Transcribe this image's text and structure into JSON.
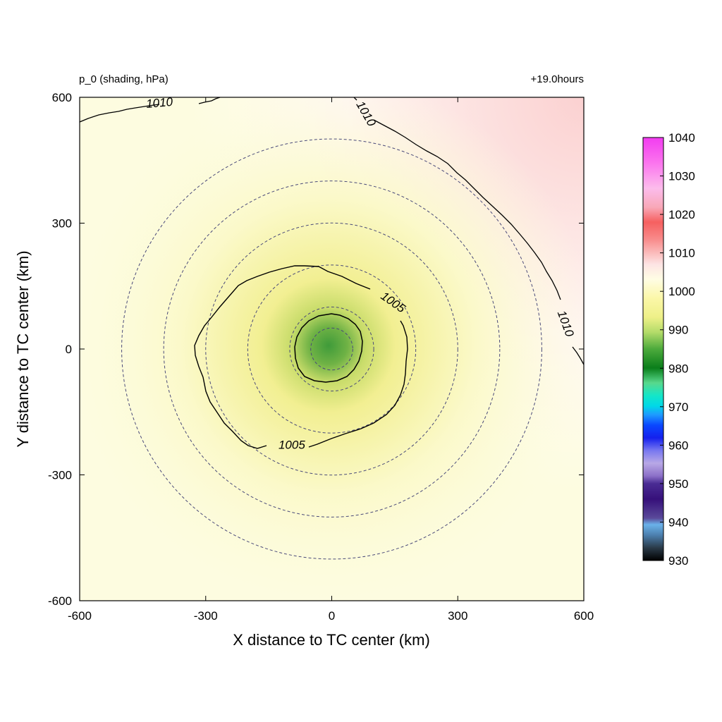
{
  "chart_data": {
    "type": "heatmap",
    "title_left": "p_0 (shading, hPa)",
    "title_right": "+19.0hours",
    "xlabel": "X distance to TC center (km)",
    "ylabel": "Y distance to TC center (km)",
    "xlim": [
      -600,
      600
    ],
    "ylim": [
      -600,
      600
    ],
    "x_ticks": [
      -600,
      -300,
      0,
      300,
      600
    ],
    "y_ticks": [
      -600,
      -300,
      0,
      300,
      600
    ],
    "colorbar": {
      "ticks": [
        930,
        940,
        950,
        960,
        970,
        980,
        990,
        1000,
        1010,
        1020,
        1030,
        1040
      ],
      "min": 930,
      "max": 1040
    },
    "field": {
      "center_pressure": 993,
      "background_pressure": 1007,
      "high_corner": "top-right",
      "high_corner_pressure": 1013
    },
    "range_rings_km": [
      50,
      100,
      200,
      300,
      400,
      500
    ],
    "contours": [
      {
        "level": 1005,
        "label": "1005"
      },
      {
        "level": 1010,
        "label": "1010"
      }
    ],
    "contour_labels": [
      {
        "text": "1010",
        "x": -410,
        "y": 585,
        "rotate": -5
      },
      {
        "text": "1010",
        "x": 80,
        "y": 560,
        "rotate": 60
      },
      {
        "text": "1010",
        "x": 555,
        "y": 60,
        "rotate": 70
      },
      {
        "text": "1005",
        "x": 145,
        "y": 110,
        "rotate": 35
      },
      {
        "text": "1005",
        "x": -95,
        "y": -230,
        "rotate": 0
      }
    ]
  }
}
